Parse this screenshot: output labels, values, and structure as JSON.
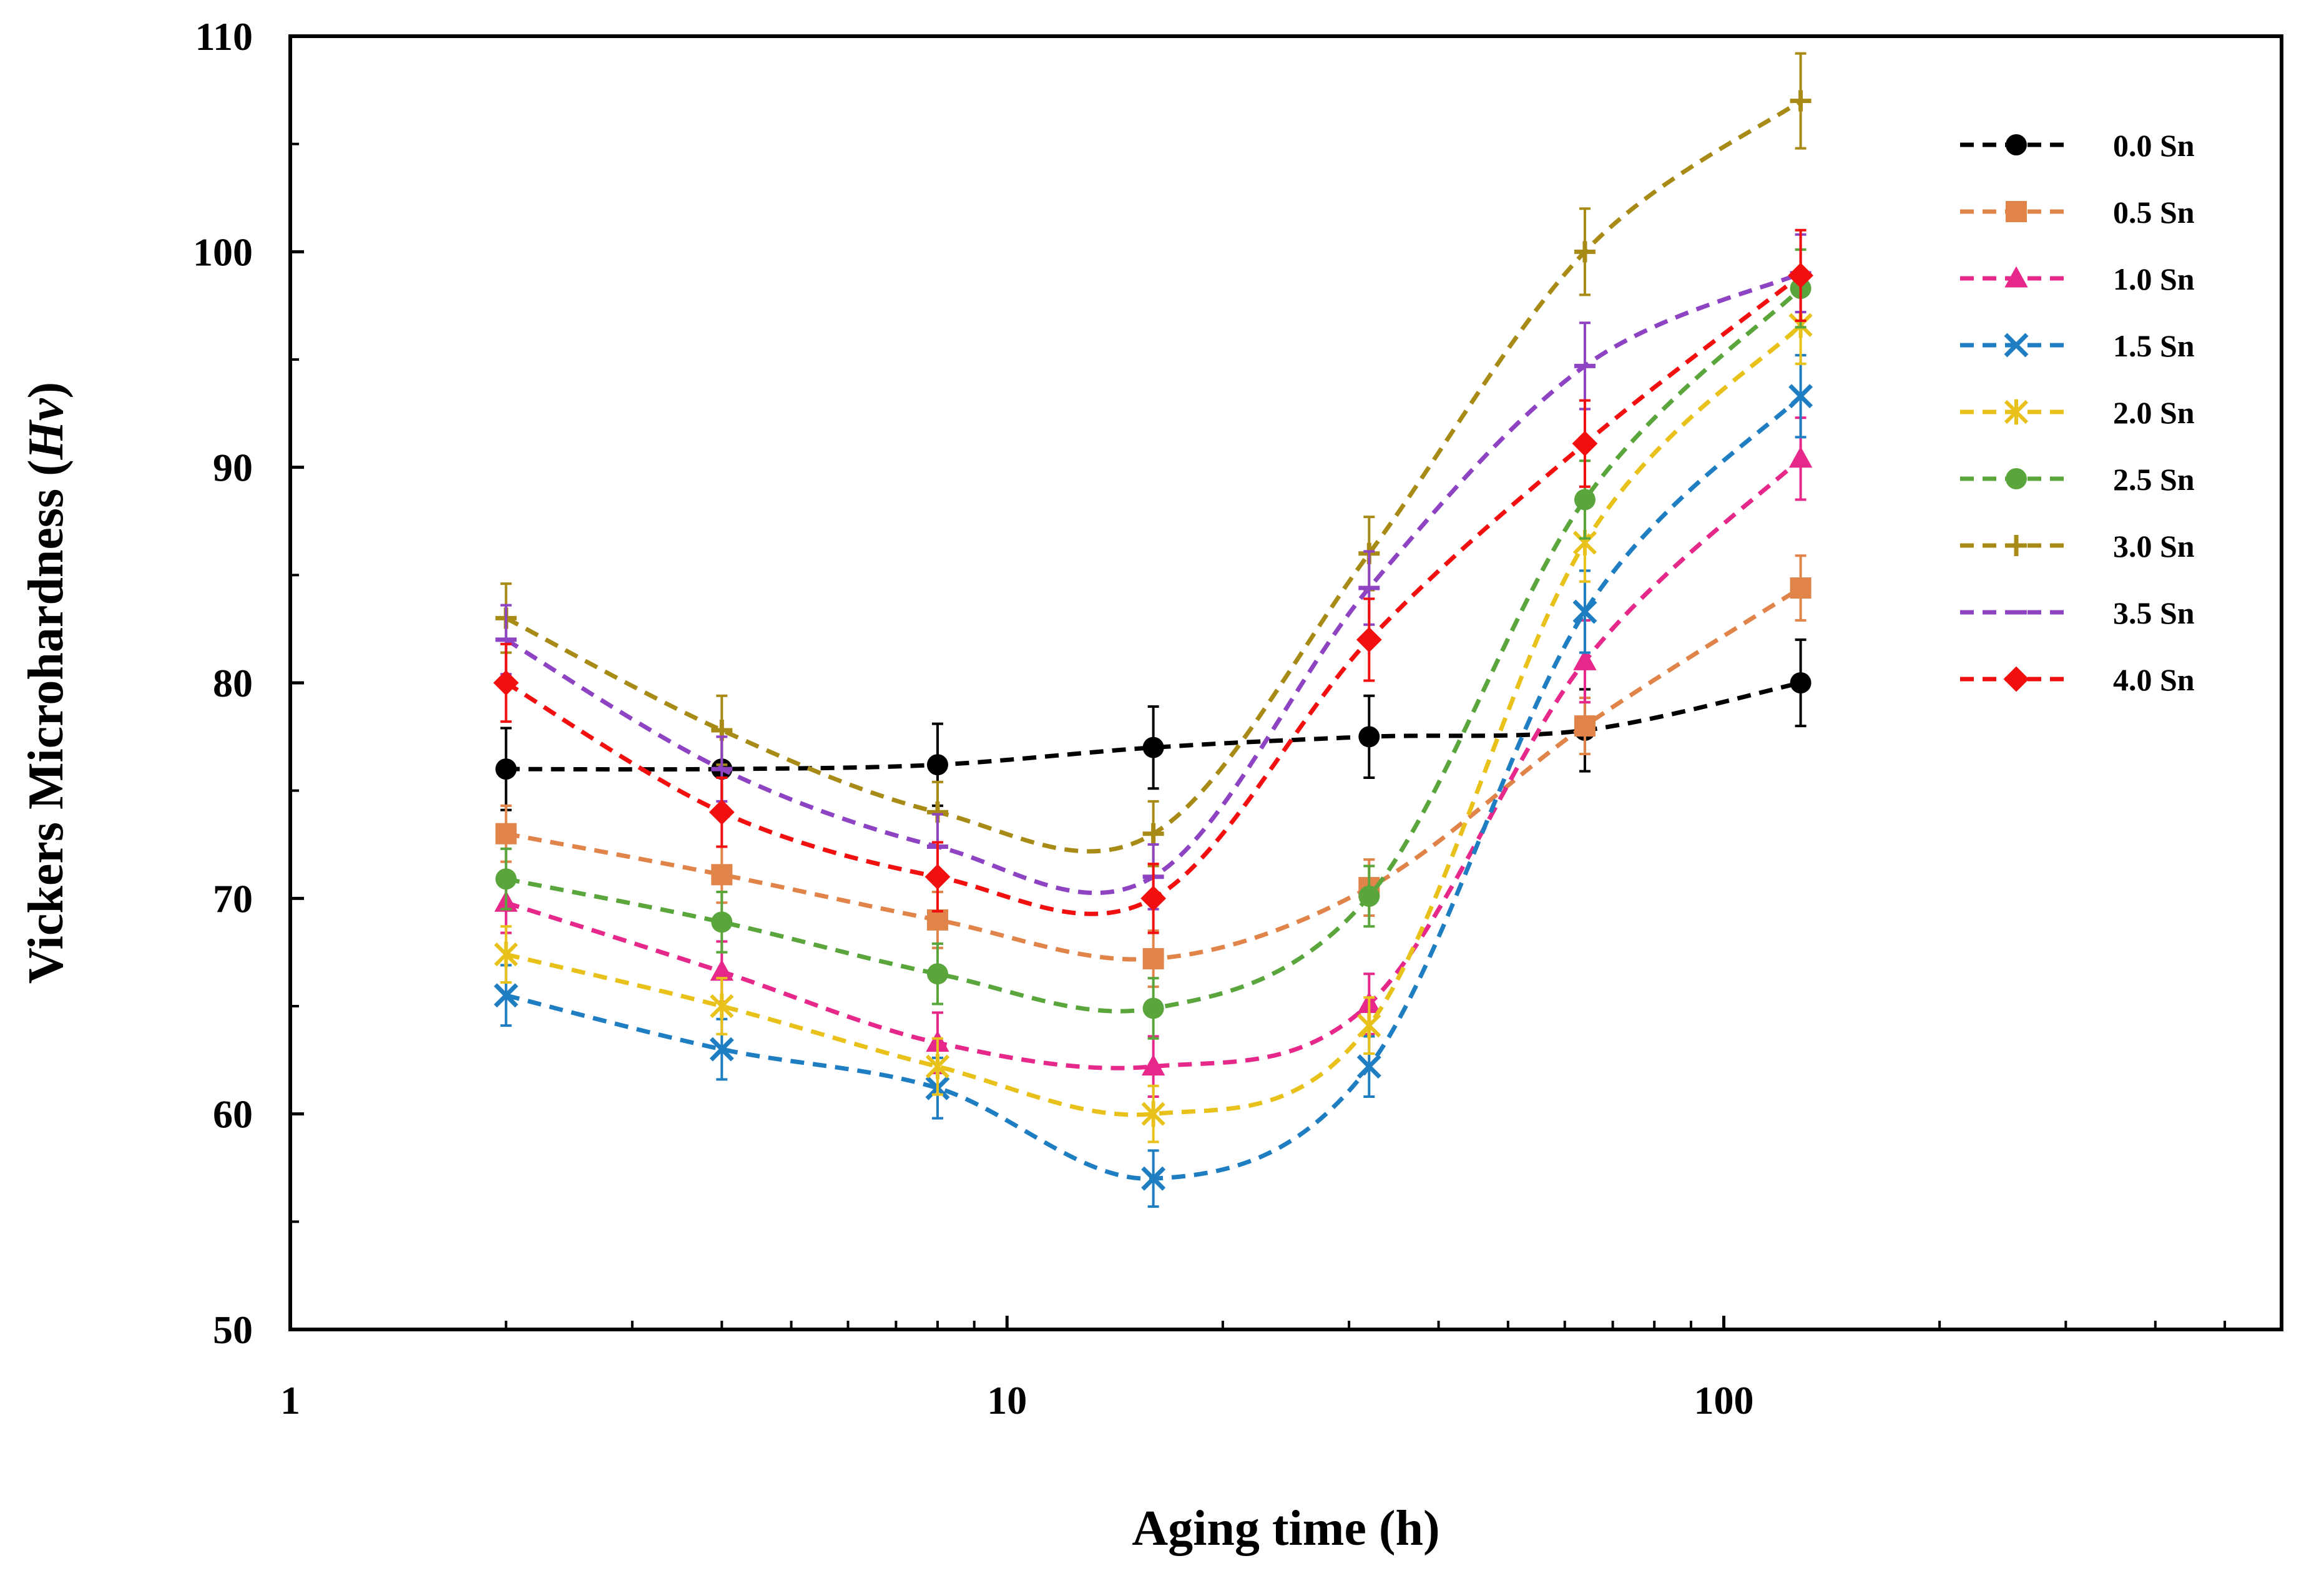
{
  "chart_data": {
    "type": "line",
    "title": "",
    "xlabel": "Aging time (h)",
    "ylabel": "Vickers Microhardness (",
    "ylabel_italic": "Hv",
    "ylabel_close": ")",
    "xscale": "log",
    "xlim": [
      1,
      600
    ],
    "ylim": [
      50,
      110
    ],
    "xticks": [
      1,
      10,
      100
    ],
    "xtick_labels": [
      "1",
      "10",
      "100"
    ],
    "yticks": [
      50,
      60,
      70,
      80,
      90,
      100,
      110
    ],
    "ytick_labels": [
      "50",
      "60",
      "70",
      "80",
      "90",
      "100",
      "110"
    ],
    "grid": false,
    "legend_position": "top-right",
    "x": [
      2,
      4,
      8,
      16,
      32,
      64,
      128
    ],
    "series": [
      {
        "name": "0.0 Sn",
        "color": "#000000",
        "marker": "circle",
        "values": [
          76.0,
          76.0,
          76.2,
          77.0,
          77.5,
          77.8,
          80.0
        ],
        "errors": [
          1.9,
          1.8,
          1.9,
          1.9,
          1.9,
          1.9,
          2.0
        ]
      },
      {
        "name": "0.5 Sn",
        "color": "#E0844A",
        "marker": "square",
        "values": [
          73.0,
          71.1,
          69.0,
          67.2,
          70.5,
          78.0,
          84.4
        ],
        "errors": [
          1.3,
          1.3,
          1.3,
          1.3,
          1.3,
          1.3,
          1.5
        ]
      },
      {
        "name": "1.0 Sn",
        "color": "#E6288A",
        "marker": "triangle",
        "values": [
          69.8,
          66.6,
          63.3,
          62.2,
          65.1,
          81.0,
          90.4
        ],
        "errors": [
          1.4,
          1.4,
          1.4,
          1.4,
          1.4,
          1.9,
          1.9
        ]
      },
      {
        "name": "1.5 Sn",
        "color": "#1F7EC2",
        "marker": "x",
        "values": [
          65.5,
          63.0,
          61.2,
          57.0,
          62.2,
          83.3,
          93.3
        ],
        "errors": [
          1.4,
          1.4,
          1.4,
          1.3,
          1.4,
          1.9,
          1.9
        ]
      },
      {
        "name": "2.0 Sn",
        "color": "#E8C21A",
        "marker": "asterisk",
        "values": [
          67.4,
          65.0,
          62.2,
          60.0,
          64.1,
          86.5,
          96.6
        ],
        "errors": [
          1.3,
          1.3,
          1.3,
          1.3,
          1.3,
          1.8,
          1.8
        ]
      },
      {
        "name": "2.5 Sn",
        "color": "#5AA63C",
        "marker": "circle",
        "values": [
          70.9,
          68.9,
          66.5,
          64.9,
          70.1,
          88.5,
          98.3
        ],
        "errors": [
          1.4,
          1.4,
          1.4,
          1.4,
          1.4,
          1.8,
          1.8
        ]
      },
      {
        "name": "3.0 Sn",
        "color": "#A88B16",
        "marker": "plus",
        "values": [
          83.0,
          77.8,
          74.0,
          73.0,
          86.0,
          100.0,
          107.0
        ],
        "errors": [
          1.6,
          1.6,
          1.4,
          1.5,
          1.7,
          2.0,
          2.2
        ]
      },
      {
        "name": "3.5 Sn",
        "color": "#8E44C2",
        "marker": "dash",
        "values": [
          82.0,
          76.0,
          72.4,
          71.0,
          84.4,
          94.7,
          99.0
        ],
        "errors": [
          1.6,
          1.5,
          1.5,
          1.5,
          1.7,
          2.0,
          1.8
        ]
      },
      {
        "name": "4.0 Sn",
        "color": "#F20F0F",
        "marker": "diamond",
        "values": [
          80.0,
          74.0,
          71.0,
          70.0,
          82.0,
          91.1,
          98.9
        ],
        "errors": [
          1.8,
          1.6,
          1.6,
          1.6,
          1.9,
          2.0,
          2.1
        ]
      }
    ]
  }
}
